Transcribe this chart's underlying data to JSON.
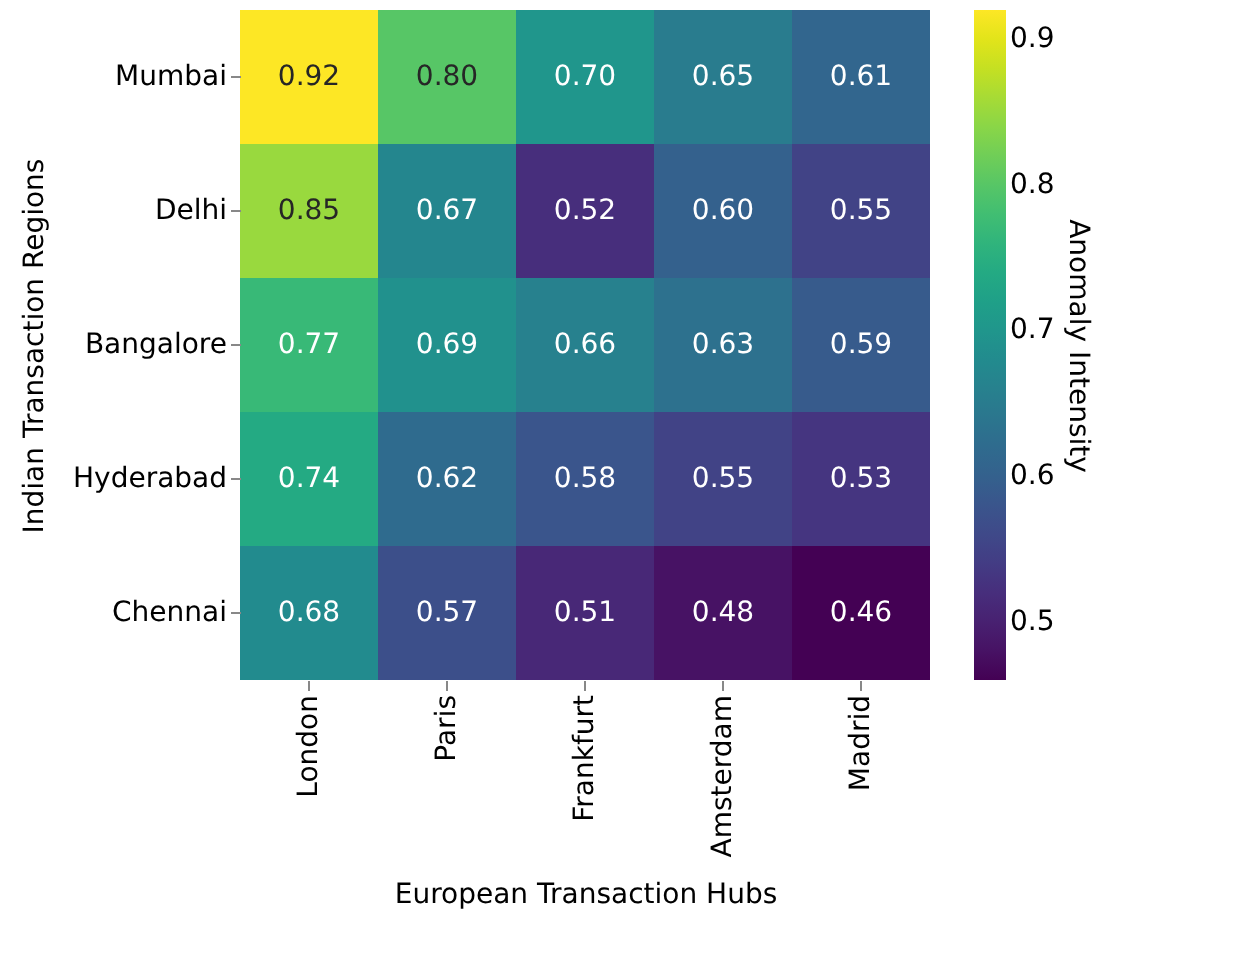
{
  "chart_data": {
    "type": "heatmap",
    "xlabel": "European Transaction Hubs",
    "ylabel": "Indian Transaction Regions",
    "clabel": "Anomaly Intensity",
    "categories": [
      "London",
      "Paris",
      "Frankfurt",
      "Amsterdam",
      "Madrid"
    ],
    "y_categories": [
      "Mumbai",
      "Delhi",
      "Bangalore",
      "Hyderabad",
      "Chennai"
    ],
    "cells": [
      [
        0.92,
        0.8,
        0.7,
        0.65,
        0.61
      ],
      [
        0.85,
        0.67,
        0.52,
        0.6,
        0.55
      ],
      [
        0.77,
        0.69,
        0.66,
        0.63,
        0.59
      ],
      [
        0.74,
        0.62,
        0.58,
        0.55,
        0.53
      ],
      [
        0.68,
        0.57,
        0.51,
        0.48,
        0.46
      ]
    ],
    "clim": [
      0.46,
      0.92
    ],
    "cticks": [
      0.5,
      0.6,
      0.7,
      0.8,
      0.9
    ],
    "cell_labels": [
      [
        "0.92",
        "0.80",
        "0.70",
        "0.65",
        "0.61"
      ],
      [
        "0.85",
        "0.67",
        "0.52",
        "0.60",
        "0.55"
      ],
      [
        "0.77",
        "0.69",
        "0.66",
        "0.63",
        "0.59"
      ],
      [
        "0.74",
        "0.62",
        "0.58",
        "0.55",
        "0.53"
      ],
      [
        "0.68",
        "0.57",
        "0.51",
        "0.48",
        "0.46"
      ]
    ]
  }
}
